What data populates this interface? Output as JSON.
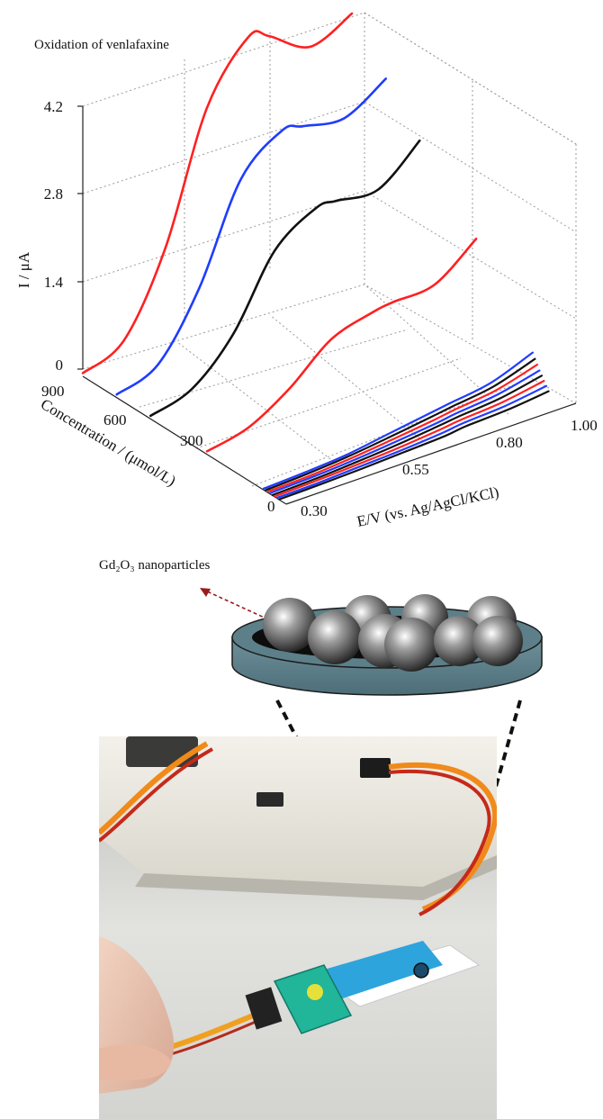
{
  "chart_data": {
    "type": "line",
    "title": "Oxidation of venlafaxine",
    "ylabel": "I / μA",
    "xlabel": "E/V (vs. Ag/AgCl/KCl)",
    "zlabel": "Concentration / (μmol/L)",
    "x_ticks": [
      "0.30",
      "0.55",
      "0.80",
      "1.00"
    ],
    "y_ticks": [
      "0",
      "1.4",
      "2.8",
      "4.2"
    ],
    "z_ticks": [
      "0",
      "300",
      "600",
      "900"
    ],
    "xlim": [
      0.3,
      1.0
    ],
    "ylim": [
      0,
      4.2
    ],
    "zlim": [
      0,
      900
    ],
    "grid": true,
    "series_colors": [
      "#ff2020",
      "#1f3cff",
      "#111111",
      "#ff2020",
      "#1f3cff",
      "#111111",
      "#ff2020",
      "#1f3cff",
      "#111111",
      "#ff2020",
      "#1f3cff",
      "#111111"
    ],
    "x": [
      0.3,
      0.4,
      0.5,
      0.6,
      0.7,
      0.75,
      0.85,
      0.95
    ],
    "series": [
      {
        "z": 900,
        "values": [
          0.05,
          0.35,
          1.6,
          3.6,
          4.5,
          4.4,
          4.0,
          4.3
        ]
      },
      {
        "z": 750,
        "values": [
          0.05,
          0.3,
          1.3,
          2.8,
          3.35,
          3.3,
          3.2,
          3.6
        ]
      },
      {
        "z": 600,
        "values": [
          0.05,
          0.25,
          0.9,
          2.0,
          2.45,
          2.45,
          2.4,
          2.95
        ]
      },
      {
        "z": 350,
        "values": [
          0.05,
          0.2,
          0.6,
          1.15,
          1.35,
          1.4,
          1.45,
          1.95
        ]
      },
      {
        "z": 100,
        "values": [
          0.02,
          0.05,
          0.1,
          0.2,
          0.3,
          0.35,
          0.45,
          0.7
        ]
      },
      {
        "z": 90,
        "values": [
          0.02,
          0.05,
          0.1,
          0.18,
          0.27,
          0.32,
          0.41,
          0.62
        ]
      },
      {
        "z": 80,
        "values": [
          0.02,
          0.04,
          0.09,
          0.16,
          0.24,
          0.29,
          0.37,
          0.55
        ]
      },
      {
        "z": 70,
        "values": [
          0.02,
          0.04,
          0.08,
          0.14,
          0.21,
          0.26,
          0.33,
          0.48
        ]
      },
      {
        "z": 60,
        "values": [
          0.01,
          0.03,
          0.07,
          0.12,
          0.19,
          0.23,
          0.29,
          0.42
        ]
      },
      {
        "z": 50,
        "values": [
          0.01,
          0.03,
          0.06,
          0.1,
          0.16,
          0.2,
          0.25,
          0.36
        ]
      },
      {
        "z": 40,
        "values": [
          0.01,
          0.02,
          0.05,
          0.08,
          0.13,
          0.17,
          0.21,
          0.3
        ]
      },
      {
        "z": 30,
        "values": [
          0.01,
          0.02,
          0.04,
          0.07,
          0.1,
          0.14,
          0.17,
          0.24
        ]
      }
    ]
  },
  "schematic": {
    "nanoparticle_label": "Gd₂O₃ nanoparticles",
    "sphere_color": "#7a7a7a",
    "dish_color": "#5c7f89"
  },
  "photo": {
    "background": "#d7d7d4",
    "device_color": "#e8e5dc",
    "electrode_color": "#2ea4dc",
    "connector_color": "#21b59a"
  }
}
